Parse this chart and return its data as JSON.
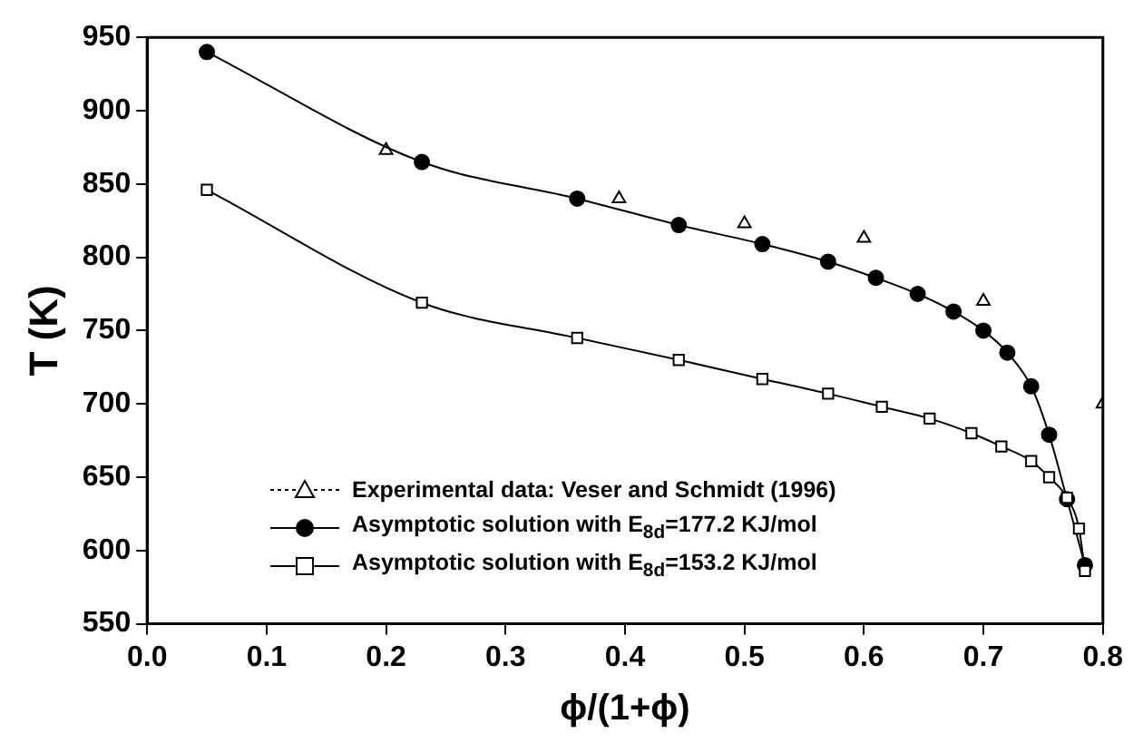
{
  "chart_data": {
    "type": "line",
    "xlabel": "ϕ/(1+ϕ)",
    "ylabel": "T (K)",
    "xlim": [
      0,
      0.8
    ],
    "xticks": [
      {
        "value": 0,
        "label": "0.0"
      },
      0.1,
      0.2,
      0.3,
      0.4,
      0.5,
      0.6,
      0.7,
      0.8
    ],
    "ylim": [
      550,
      950
    ],
    "yticks": [
      550,
      600,
      650,
      700,
      750,
      800,
      850,
      900,
      950
    ],
    "grid": false,
    "legend": "bottom left",
    "series": [
      {
        "name": "Experimental data: Veser and Schmidt (1996)",
        "type": "scatter",
        "marker": "triangle",
        "color": "#000000",
        "x": [
          0.2,
          0.395,
          0.5,
          0.6,
          0.7,
          0.8
        ],
        "values": [
          873,
          840,
          823,
          813,
          770,
          700
        ]
      },
      {
        "name": "Asymptotic solution with E$_{8d}$=177.2 KJ/mol",
        "type": "line",
        "marker": "circle",
        "color": "#000000",
        "x": [
          0.05,
          0.23,
          0.36,
          0.445,
          0.515,
          0.57,
          0.61,
          0.645,
          0.675,
          0.7,
          0.72,
          0.74,
          0.755,
          0.77,
          0.785
        ],
        "values": [
          940,
          865,
          840,
          822,
          809,
          797,
          786,
          775,
          763,
          750,
          735,
          712,
          679,
          635,
          590
        ]
      },
      {
        "name": "Asymptotic solution with E$_{8d}$=153.2 KJ/mol",
        "type": "line",
        "marker": "square",
        "color": "#000000",
        "x": [
          0.05,
          0.23,
          0.36,
          0.445,
          0.515,
          0.57,
          0.615,
          0.655,
          0.69,
          0.715,
          0.74,
          0.755,
          0.77,
          0.78,
          0.785
        ],
        "values": [
          846,
          769,
          745,
          730,
          717,
          707,
          698,
          690,
          680,
          671,
          661,
          650,
          636,
          615,
          586
        ]
      }
    ]
  }
}
